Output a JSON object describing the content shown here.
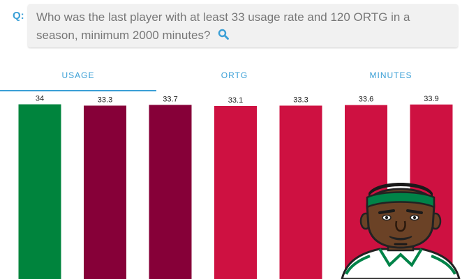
{
  "question": {
    "prefix": "Q:",
    "text": "Who was the last player with at least 33 usage rate and 120 ORTG in a season, minimum 2000 minutes?"
  },
  "tabs": [
    {
      "label": "USAGE",
      "active": true
    },
    {
      "label": "ORTG",
      "active": false
    },
    {
      "label": "MINUTES",
      "active": false
    }
  ],
  "icons": {
    "search": "search-icon",
    "player": "player-avatar-icon"
  },
  "chart_data": {
    "type": "bar",
    "values": [
      34,
      33.3,
      33.7,
      33.1,
      33.3,
      33.6,
      33.9
    ],
    "labels": [
      "34",
      "33.3",
      "33.7",
      "33.1",
      "33.3",
      "33.6",
      "33.9"
    ],
    "colors": [
      "#00843D",
      "#860038",
      "#860038",
      "#CE1141",
      "#CE1141",
      "#CE1141",
      "#CE1141"
    ],
    "ylim": [
      0,
      40
    ]
  },
  "colors": {
    "accent": "#3a9fd6",
    "question_bg": "#f1f1f1"
  }
}
